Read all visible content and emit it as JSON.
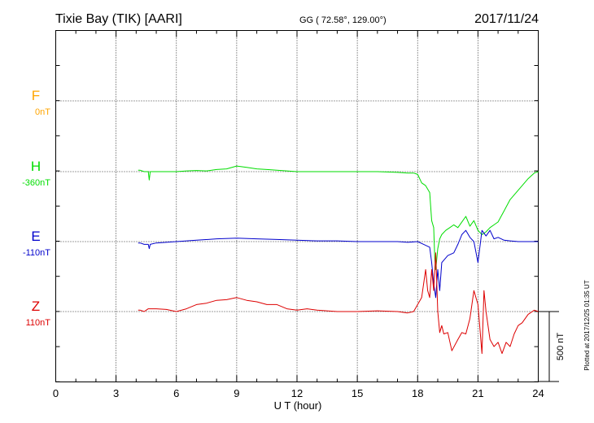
{
  "header": {
    "station": "Tixie Bay (TIK)  [AARI]",
    "coords": "GG ( 72.58°, 129.00°)",
    "date": "2017/11/24"
  },
  "footer": {
    "plotted": "Plotted at 2017/12/25 01:35 UT"
  },
  "scale_bar": {
    "label": "500 nT"
  },
  "colors": {
    "F": "#ffa500",
    "H": "#00dd00",
    "E": "#0000cc",
    "Z": "#dd0000",
    "axis": "#000000"
  },
  "chart_data": {
    "type": "line",
    "xlabel": "U T (hour)",
    "xlim": [
      0,
      24
    ],
    "xticks": [
      "0",
      "3",
      "6",
      "9",
      "12",
      "15",
      "18",
      "21",
      "24"
    ],
    "units": "nT",
    "series": [
      {
        "name": "F",
        "baseline_label": "0nT",
        "x": [],
        "y": []
      },
      {
        "name": "H",
        "baseline_label": "-360nT",
        "x": [
          4.1,
          4.2,
          4.4,
          4.6,
          4.65,
          4.7,
          5.0,
          5.5,
          6.0,
          6.5,
          7.0,
          7.5,
          8.0,
          8.5,
          9.0,
          9.5,
          10.0,
          10.5,
          11.0,
          11.5,
          12.0,
          12.5,
          13.0,
          14.0,
          15.0,
          16.0,
          17.0,
          17.5,
          17.8,
          18.0,
          18.2,
          18.4,
          18.6,
          18.7,
          18.8,
          18.85,
          18.9,
          19.0,
          19.1,
          19.2,
          19.4,
          19.6,
          19.8,
          20.0,
          20.2,
          20.4,
          20.6,
          20.8,
          21.0,
          21.2,
          21.4,
          21.6,
          21.8,
          22.0,
          22.3,
          22.6,
          22.9,
          23.2,
          23.5,
          23.8,
          24.0
        ],
        "y": [
          10,
          10,
          0,
          0,
          -60,
          0,
          0,
          0,
          0,
          5,
          8,
          5,
          15,
          20,
          40,
          30,
          20,
          15,
          10,
          5,
          0,
          0,
          0,
          0,
          0,
          0,
          -5,
          -10,
          -10,
          -20,
          -80,
          -100,
          -150,
          -350,
          -400,
          -620,
          -700,
          -550,
          -480,
          -450,
          -420,
          -400,
          -380,
          -400,
          -360,
          -320,
          -390,
          -350,
          -420,
          -450,
          -430,
          -400,
          -380,
          -360,
          -280,
          -200,
          -150,
          -100,
          -50,
          -10,
          0
        ]
      },
      {
        "name": "E",
        "baseline_label": "-110nT",
        "x": [
          4.1,
          4.2,
          4.4,
          4.6,
          4.65,
          4.7,
          5.0,
          5.5,
          6.0,
          7.0,
          8.0,
          9.0,
          10.0,
          11.0,
          12.0,
          13.0,
          14.0,
          15.0,
          16.0,
          17.0,
          17.5,
          18.0,
          18.3,
          18.6,
          18.7,
          18.8,
          18.9,
          19.0,
          19.1,
          19.2,
          19.5,
          19.8,
          20.0,
          20.2,
          20.4,
          20.6,
          20.8,
          21.0,
          21.2,
          21.4,
          21.6,
          21.8,
          22.0,
          22.3,
          22.6,
          23.0,
          23.5,
          24.0
        ],
        "y": [
          -10,
          -10,
          -20,
          -20,
          -50,
          -20,
          -10,
          -5,
          0,
          10,
          20,
          25,
          20,
          15,
          10,
          5,
          5,
          0,
          0,
          0,
          -5,
          0,
          -20,
          -40,
          -150,
          -300,
          -400,
          -200,
          -350,
          -150,
          -100,
          -80,
          -20,
          50,
          80,
          30,
          0,
          -150,
          80,
          40,
          80,
          20,
          30,
          10,
          5,
          0,
          0,
          0
        ]
      },
      {
        "name": "Z",
        "baseline_label": "110nT",
        "x": [
          4.1,
          4.2,
          4.4,
          4.6,
          5.0,
          5.5,
          6.0,
          6.5,
          7.0,
          7.5,
          8.0,
          8.5,
          9.0,
          9.5,
          10.0,
          10.5,
          11.0,
          11.5,
          12.0,
          12.5,
          13.0,
          14.0,
          15.0,
          16.0,
          17.0,
          17.5,
          17.8,
          18.0,
          18.2,
          18.4,
          18.5,
          18.6,
          18.7,
          18.8,
          18.9,
          19.0,
          19.1,
          19.2,
          19.3,
          19.5,
          19.7,
          20.0,
          20.2,
          20.4,
          20.6,
          20.8,
          21.0,
          21.2,
          21.3,
          21.4,
          21.6,
          21.8,
          22.0,
          22.2,
          22.4,
          22.6,
          22.8,
          23.0,
          23.2,
          23.5,
          23.8,
          24.0
        ],
        "y": [
          10,
          10,
          0,
          20,
          20,
          15,
          0,
          20,
          50,
          60,
          80,
          85,
          100,
          80,
          70,
          50,
          50,
          20,
          10,
          20,
          10,
          0,
          0,
          5,
          0,
          -10,
          0,
          50,
          100,
          300,
          150,
          100,
          300,
          150,
          420,
          0,
          -150,
          -100,
          -160,
          -150,
          -280,
          -200,
          -150,
          -160,
          -50,
          150,
          50,
          -300,
          150,
          0,
          -200,
          -250,
          -220,
          -300,
          -220,
          -250,
          -160,
          -100,
          -80,
          -20,
          10,
          0
        ]
      }
    ]
  }
}
